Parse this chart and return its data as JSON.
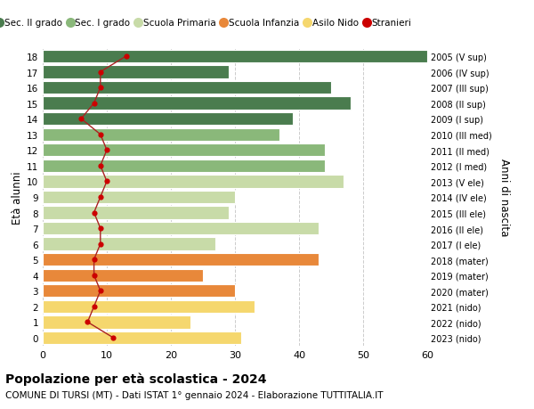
{
  "ages": [
    0,
    1,
    2,
    3,
    4,
    5,
    6,
    7,
    8,
    9,
    10,
    11,
    12,
    13,
    14,
    15,
    16,
    17,
    18
  ],
  "right_labels": [
    "2023 (nido)",
    "2022 (nido)",
    "2021 (nido)",
    "2020 (mater)",
    "2019 (mater)",
    "2018 (mater)",
    "2017 (I ele)",
    "2016 (II ele)",
    "2015 (III ele)",
    "2014 (IV ele)",
    "2013 (V ele)",
    "2012 (I med)",
    "2011 (II med)",
    "2010 (III med)",
    "2009 (I sup)",
    "2008 (II sup)",
    "2007 (III sup)",
    "2006 (IV sup)",
    "2005 (V sup)"
  ],
  "bar_values": [
    31,
    23,
    33,
    30,
    25,
    43,
    27,
    43,
    29,
    30,
    47,
    44,
    44,
    37,
    39,
    48,
    45,
    29,
    60
  ],
  "stranieri_values": [
    11,
    7,
    8,
    9,
    8,
    8,
    9,
    9,
    8,
    9,
    10,
    9,
    10,
    9,
    6,
    8,
    9,
    9,
    13
  ],
  "bar_colors": [
    "#f5d76e",
    "#f5d76e",
    "#f5d76e",
    "#e8883a",
    "#e8883a",
    "#e8883a",
    "#c8dba8",
    "#c8dba8",
    "#c8dba8",
    "#c8dba8",
    "#c8dba8",
    "#8ab87a",
    "#8ab87a",
    "#8ab87a",
    "#4a7c4e",
    "#4a7c4e",
    "#4a7c4e",
    "#4a7c4e",
    "#4a7c4e"
  ],
  "legend_labels": [
    "Sec. II grado",
    "Sec. I grado",
    "Scuola Primaria",
    "Scuola Infanzia",
    "Asilo Nido",
    "Stranieri"
  ],
  "legend_colors": [
    "#4a7c4e",
    "#8ab87a",
    "#c8dba8",
    "#e8883a",
    "#f5d76e",
    "#cc0000"
  ],
  "ylabel": "Età alunni",
  "ylabel2": "Anni di nascita",
  "title_bold": "Popolazione per età scolastica - 2024",
  "subtitle": "COMUNE DI TURSI (MT) - Dati ISTAT 1° gennaio 2024 - Elaborazione TUTTITALIA.IT",
  "xlim": [
    0,
    60
  ],
  "background_color": "#ffffff",
  "grid_color": "#cccccc",
  "bar_height": 0.82,
  "stranieri_line_color": "#aa2222",
  "stranieri_marker_color": "#cc0000"
}
